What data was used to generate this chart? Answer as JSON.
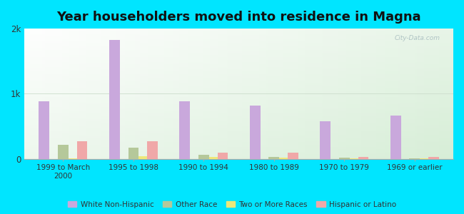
{
  "title": "Year householders moved into residence in Magna",
  "categories": [
    "1999 to March\n2000",
    "1995 to 1998",
    "1990 to 1994",
    "1980 to 1989",
    "1970 to 1979",
    "1969 or earlier"
  ],
  "series": {
    "White Non-Hispanic": [
      880,
      1830,
      880,
      820,
      580,
      660
    ],
    "Other Race": [
      215,
      175,
      60,
      35,
      20,
      10
    ],
    "Two or More Races": [
      12,
      45,
      28,
      18,
      12,
      5
    ],
    "Hispanic or Latino": [
      270,
      270,
      95,
      95,
      28,
      28
    ]
  },
  "colors": {
    "White Non-Hispanic": "#c9a8dc",
    "Other Race": "#b5c89a",
    "Two or More Races": "#ede87a",
    "Hispanic or Latino": "#f0a8a8"
  },
  "ylim": [
    0,
    2000
  ],
  "yticks": [
    0,
    1000,
    2000
  ],
  "ytick_labels": [
    "0",
    "1k",
    "2k"
  ],
  "background_color": "#00e5ff",
  "title_fontsize": 13,
  "bar_width": 0.15,
  "legend_labels": [
    "White Non-Hispanic",
    "Other Race",
    "Two or More Races",
    "Hispanic or Latino"
  ]
}
